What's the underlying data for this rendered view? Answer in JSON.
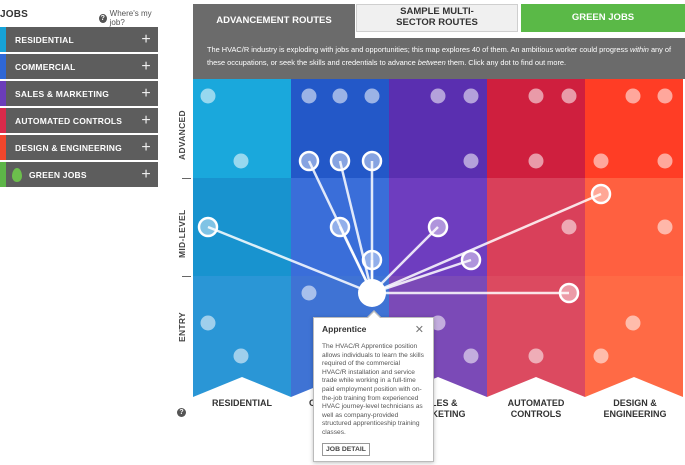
{
  "sidebar": {
    "title": "JOBS",
    "help_link": "Where's my job?",
    "categories": [
      {
        "label": "RESIDENTIAL",
        "color": "#16a3d8"
      },
      {
        "label": "COMMERCIAL",
        "color": "#2e67d6"
      },
      {
        "label": "SALES & MARKETING",
        "color": "#6b3dba"
      },
      {
        "label": "AUTOMATED CONTROLS",
        "color": "#d92a4a"
      },
      {
        "label": "DESIGN & ENGINEERING",
        "color": "#f2462c"
      },
      {
        "label": "GREEN JOBS",
        "color": "#5db548",
        "icon": "leaf-icon"
      }
    ]
  },
  "tabs": [
    {
      "label": "ADVANCEMENT ROUTES",
      "state": "active"
    },
    {
      "label": "SAMPLE MULTI-SECTOR ROUTES",
      "state": "inactive"
    },
    {
      "label": "GREEN JOBS",
      "state": "green"
    }
  ],
  "intro": {
    "part1": "The HVAC/R industry is exploding with jobs and opportunities; this map explores 40 of them. An ambitious worker could progress ",
    "em1": "within",
    "part2": " any of these occupations, or seek the skills and credentials to advance ",
    "em2": "between",
    "part3": " them. Click any dot to find out more."
  },
  "levels": [
    "ADVANCED",
    "MID-LEVEL",
    "ENTRY"
  ],
  "columns": [
    "RESIDENTIAL",
    "COMMERCIAL",
    "SALES & MARKETING",
    "AUTOMATED CONTROLS",
    "DESIGN & ENGINEERING"
  ],
  "column_colors": [
    [
      "#1aa8dc",
      "#1893cf",
      "#2a96d6"
    ],
    [
      "#2358c8",
      "#3a6ed9",
      "#3f73d4"
    ],
    [
      "#5a2fb0",
      "#6e3dbf",
      "#7b4ab7"
    ],
    [
      "#cf1f3e",
      "#d9405a",
      "#dc4a60"
    ],
    [
      "#ff3d25",
      "#ff6040",
      "#ff6a45"
    ]
  ],
  "popup": {
    "title": "Apprentice",
    "close_icon": "close-icon",
    "body": "The HVAC/R Apprentice position allows individuals to learn the skills required of the commercial HVAC/R installation and service trade while working in a full-time paid employment position with on-the-job training from experienced HVAC journey-level technicians as well as company-provided structured apprenticeship training classes.",
    "button": "JOB DETAIL"
  },
  "bottom_help_icon": "help-icon"
}
